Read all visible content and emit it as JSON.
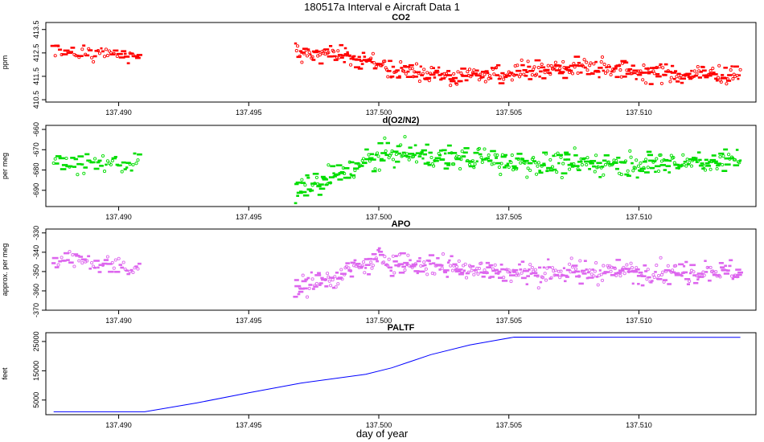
{
  "figure": {
    "title": "180517a   Interval e Aircraft Data 1",
    "xlabel": "day of year"
  },
  "chart_data": [
    {
      "type": "scatter",
      "title": "CO2",
      "ylabel": "ppm",
      "xlim": [
        137.4872,
        137.5145
      ],
      "ylim": [
        410.4,
        413.8
      ],
      "xticks": [
        137.49,
        137.495,
        137.5,
        137.505,
        137.51
      ],
      "xtick_labels": [
        "137.490",
        "137.495",
        "137.500",
        "137.505",
        "137.510"
      ],
      "yticks": [
        410.5,
        411.5,
        412.5,
        413.5
      ],
      "ytick_labels": [
        "410.5",
        "411.5",
        "412.5",
        "413.5"
      ],
      "color": "#ff0000",
      "segments": [
        {
          "x_start": 137.4875,
          "x_end": 137.4908,
          "n": 55,
          "trend": [
            [
              137.4875,
              412.6
            ],
            [
              137.4908,
              412.4
            ]
          ],
          "spread": 0.6
        },
        {
          "x_start": 137.4968,
          "x_end": 137.5139,
          "n": 420,
          "trend": [
            [
              137.4968,
              412.6
            ],
            [
              137.4995,
              412.3
            ],
            [
              137.5005,
              411.8
            ],
            [
              137.503,
              411.5
            ],
            [
              137.505,
              411.7
            ],
            [
              137.508,
              411.9
            ],
            [
              137.511,
              411.6
            ],
            [
              137.5139,
              411.6
            ]
          ],
          "spread": 0.9
        }
      ]
    },
    {
      "type": "scatter",
      "title": "d(O2/N2)",
      "ylabel": "per meg",
      "xlim": [
        137.4872,
        137.5145
      ],
      "ylim": [
        -698,
        -658
      ],
      "xticks": [
        137.49,
        137.495,
        137.5,
        137.505,
        137.51
      ],
      "xtick_labels": [
        "137.490",
        "137.495",
        "137.500",
        "137.505",
        "137.510"
      ],
      "yticks": [
        -690,
        -680,
        -670,
        -660
      ],
      "ytick_labels": [
        "-690",
        "-680",
        "-670",
        "-660"
      ],
      "color": "#00dd00",
      "segments": [
        {
          "x_start": 137.4875,
          "x_end": 137.4908,
          "n": 55,
          "trend": [
            [
              137.4875,
              -676
            ],
            [
              137.4908,
              -677
            ]
          ],
          "spread": 10
        },
        {
          "x_start": 137.4968,
          "x_end": 137.5139,
          "n": 420,
          "trend": [
            [
              137.4968,
              -690
            ],
            [
              137.4985,
              -682
            ],
            [
              137.4998,
              -674
            ],
            [
              137.5005,
              -672
            ],
            [
              137.503,
              -674
            ],
            [
              137.506,
              -677
            ],
            [
              137.51,
              -677
            ],
            [
              137.5139,
              -675
            ]
          ],
          "spread": 13
        }
      ]
    },
    {
      "type": "scatter",
      "title": "APO",
      "ylabel": "approx. per meg",
      "xlim": [
        137.4872,
        137.5145
      ],
      "ylim": [
        -370,
        -328
      ],
      "xticks": [
        137.49,
        137.495,
        137.5,
        137.505,
        137.51
      ],
      "xtick_labels": [
        "137.490",
        "137.495",
        "137.500",
        "137.505",
        "137.510"
      ],
      "yticks": [
        -370,
        -360,
        -350,
        -340,
        -330
      ],
      "ytick_labels": [
        "-370",
        "-360",
        "-350",
        "-340",
        "-330"
      ],
      "color": "#dd66ee",
      "segments": [
        {
          "x_start": 137.4875,
          "x_end": 137.4908,
          "n": 55,
          "trend": [
            [
              137.4875,
              -343
            ],
            [
              137.4908,
              -348
            ]
          ],
          "spread": 11
        },
        {
          "x_start": 137.4968,
          "x_end": 137.5139,
          "n": 420,
          "trend": [
            [
              137.4968,
              -358
            ],
            [
              137.4985,
              -352
            ],
            [
              137.5,
              -344
            ],
            [
              137.503,
              -348
            ],
            [
              137.506,
              -351
            ],
            [
              137.51,
              -350
            ],
            [
              137.5139,
              -350
            ]
          ],
          "spread": 13
        }
      ]
    },
    {
      "type": "line",
      "title": "PALTF",
      "ylabel": "feet",
      "xlim": [
        137.4872,
        137.5145
      ],
      "ylim": [
        0,
        28000
      ],
      "xticks": [
        137.49,
        137.495,
        137.5,
        137.505,
        137.51
      ],
      "xtick_labels": [
        "137.490",
        "137.495",
        "137.500",
        "137.505",
        "137.510"
      ],
      "yticks": [
        5000,
        15000,
        25000
      ],
      "ytick_labels": [
        "5000",
        "15000",
        "25000"
      ],
      "color": "#0000ff",
      "x": [
        137.4875,
        137.491,
        137.493,
        137.495,
        137.497,
        137.4995,
        137.5005,
        137.502,
        137.5035,
        137.5045,
        137.5052,
        137.5139
      ],
      "y": [
        1000,
        1000,
        4000,
        7500,
        10800,
        13800,
        16000,
        20500,
        23800,
        25400,
        26500,
        26400
      ]
    }
  ]
}
